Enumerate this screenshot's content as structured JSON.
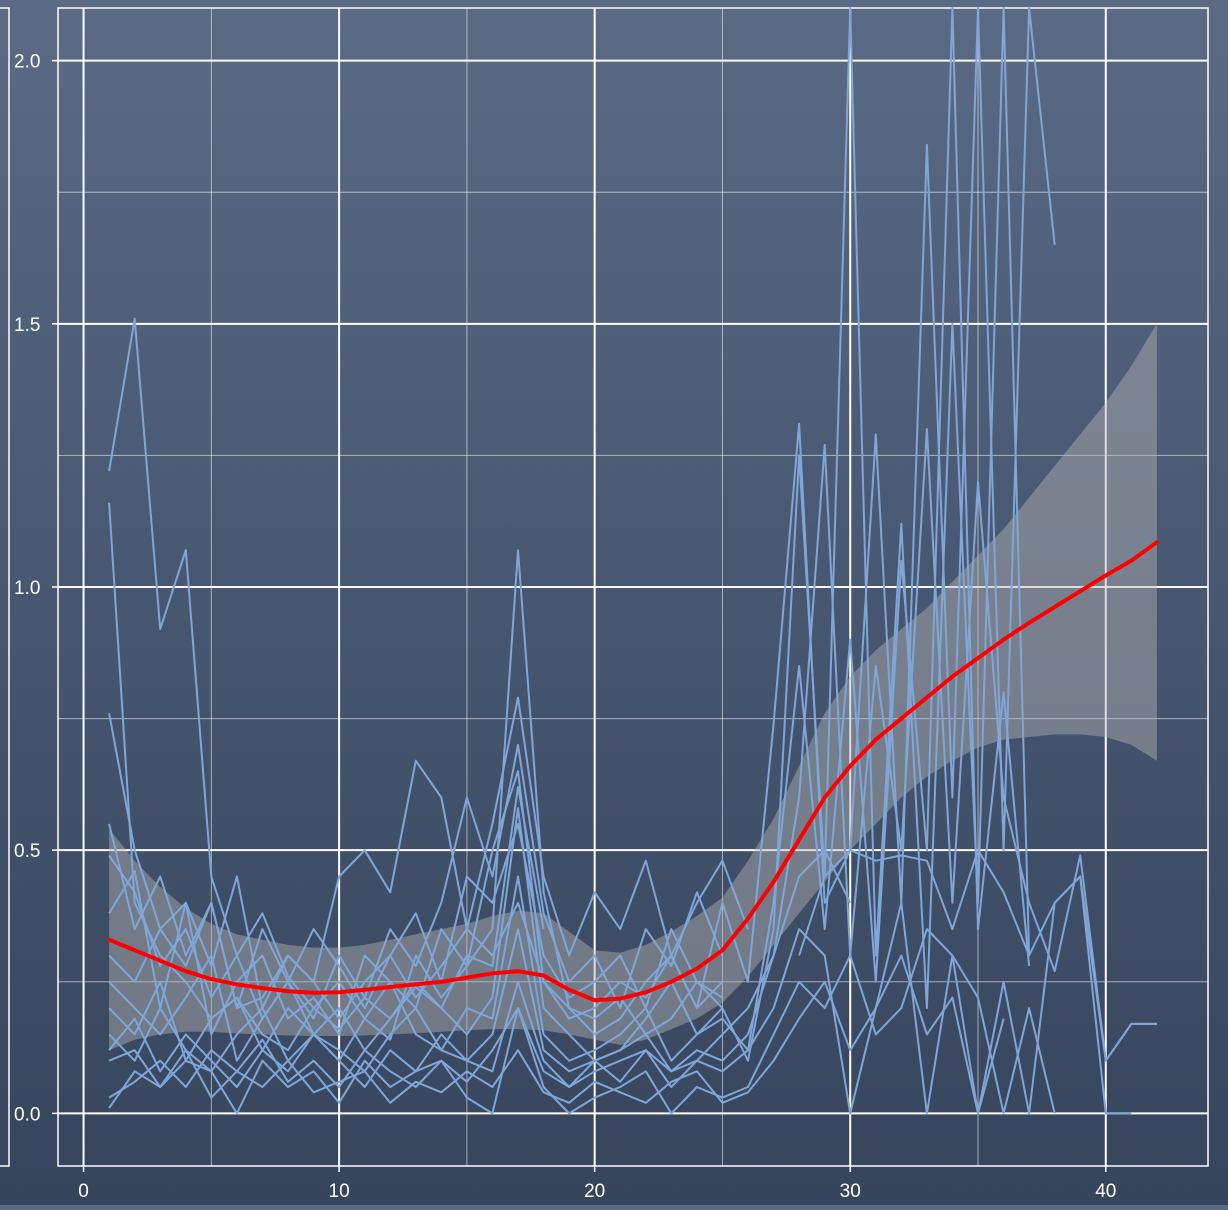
{
  "chart_data": {
    "type": "line",
    "title": "",
    "xlabel": "",
    "ylabel": "",
    "xlim": [
      -1,
      44
    ],
    "ylim": [
      -0.1,
      2.1
    ],
    "x_ticks": [
      0,
      10,
      20,
      30,
      40
    ],
    "y_ticks": [
      0.0,
      0.5,
      1.0,
      1.5,
      2.0
    ],
    "x_tick_labels": [
      "0",
      "10",
      "20",
      "30",
      "40"
    ],
    "y_tick_labels": [
      "0.0",
      "0.5",
      "1.0",
      "1.5",
      "2.0"
    ],
    "x_minor_ticks": [
      5,
      15,
      25,
      35
    ],
    "y_minor_ticks": [
      0.25,
      0.75,
      1.25,
      1.75
    ],
    "grid": true,
    "legend": "none",
    "colors": {
      "individual_lines": "#7fa6d6",
      "smooth_line": "#ff0000",
      "confidence_band": "#b4b4b4",
      "grid": "#ffffff"
    },
    "series": [
      {
        "x": [
          1,
          2,
          3,
          4,
          5,
          6,
          7,
          8,
          9,
          10,
          11,
          12,
          13,
          14,
          15,
          16,
          17,
          18
        ],
        "y": [
          1.22,
          1.51,
          0.92,
          1.07,
          0.45,
          0.3,
          0.38,
          0.26,
          0.2,
          0.16,
          0.22,
          0.18,
          0.24,
          0.2,
          0.3,
          0.28,
          0.62,
          0.35
        ]
      },
      {
        "x": [
          1,
          2,
          3,
          4,
          5,
          6,
          7,
          8,
          9,
          10,
          11,
          12,
          13,
          14,
          15,
          16,
          17,
          18,
          19,
          20,
          21,
          22,
          23,
          24,
          25
        ],
        "y": [
          1.16,
          0.4,
          0.3,
          0.25,
          0.18,
          0.22,
          0.15,
          0.12,
          0.2,
          0.25,
          0.18,
          0.14,
          0.3,
          0.22,
          0.28,
          0.35,
          1.07,
          0.42,
          0.2,
          0.18,
          0.22,
          0.15,
          0.18,
          0.25,
          0.2
        ]
      },
      {
        "x": [
          1,
          2,
          3,
          4,
          5,
          6,
          7,
          8,
          9,
          10,
          11,
          12,
          13,
          14,
          15,
          16,
          17,
          18,
          19,
          20,
          21,
          22,
          23,
          24,
          25,
          26
        ],
        "y": [
          0.76,
          0.5,
          0.35,
          0.4,
          0.28,
          0.45,
          0.2,
          0.3,
          0.25,
          0.45,
          0.5,
          0.42,
          0.67,
          0.6,
          0.35,
          0.55,
          0.79,
          0.45,
          0.3,
          0.42,
          0.35,
          0.48,
          0.3,
          0.4,
          0.48,
          0.35
        ]
      },
      {
        "x": [
          1,
          2,
          3,
          4,
          5,
          6,
          7,
          8,
          9,
          10,
          11,
          12,
          13,
          14,
          15,
          16,
          17,
          18,
          19,
          20,
          21,
          22,
          23,
          24,
          25
        ],
        "y": [
          0.55,
          0.35,
          0.45,
          0.3,
          0.4,
          0.2,
          0.35,
          0.25,
          0.18,
          0.3,
          0.22,
          0.35,
          0.28,
          0.4,
          0.6,
          0.45,
          0.7,
          0.38,
          0.25,
          0.3,
          0.2,
          0.35,
          0.28,
          0.42,
          0.3
        ]
      },
      {
        "x": [
          1,
          2,
          3,
          4,
          5,
          6,
          7,
          8,
          9,
          10,
          11,
          12,
          13,
          14,
          15,
          16,
          17,
          18,
          19,
          20,
          21,
          22,
          23,
          24,
          25
        ],
        "y": [
          0.49,
          0.42,
          0.28,
          0.35,
          0.22,
          0.3,
          0.18,
          0.25,
          0.35,
          0.28,
          0.2,
          0.3,
          0.38,
          0.25,
          0.45,
          0.4,
          0.55,
          0.3,
          0.22,
          0.25,
          0.3,
          0.2,
          0.35,
          0.25,
          0.22
        ]
      },
      {
        "x": [
          1,
          2,
          3,
          4,
          5,
          6,
          7,
          8,
          9,
          10,
          11,
          12,
          13,
          14,
          15,
          16,
          17,
          18,
          19,
          20,
          21,
          22,
          23,
          24,
          25
        ],
        "y": [
          0.38,
          0.46,
          0.2,
          0.4,
          0.15,
          0.25,
          0.3,
          0.18,
          0.22,
          0.15,
          0.3,
          0.25,
          0.2,
          0.35,
          0.28,
          0.5,
          0.65,
          0.25,
          0.18,
          0.2,
          0.25,
          0.22,
          0.3,
          0.2,
          0.25
        ]
      },
      {
        "x": [
          1,
          2,
          3,
          4,
          5,
          6,
          7,
          8,
          9,
          10,
          11,
          12,
          13,
          14,
          15,
          16,
          17,
          18,
          19,
          20,
          21,
          22,
          23,
          24,
          25,
          26,
          27,
          28,
          29,
          30,
          31,
          32,
          33,
          34,
          35,
          36,
          37,
          38
        ],
        "y": [
          0.3,
          0.25,
          0.35,
          0.28,
          0.4,
          0.2,
          0.22,
          0.3,
          0.25,
          0.18,
          0.25,
          0.3,
          0.22,
          0.28,
          0.35,
          0.3,
          0.4,
          0.25,
          0.2,
          0.15,
          0.18,
          0.25,
          0.3,
          0.2,
          0.4,
          0.25,
          0.74,
          1.31,
          0.4,
          0.5,
          1.29,
          0.4,
          1.84,
          0.6,
          2.12,
          0.5,
          2.12,
          1.65
        ]
      },
      {
        "x": [
          1,
          2,
          3,
          4,
          5,
          6,
          7,
          8,
          9,
          10,
          11,
          12,
          13,
          14,
          15,
          16,
          17,
          18,
          19,
          20,
          21,
          22,
          23,
          24,
          25,
          26,
          27,
          28,
          29,
          30,
          31,
          32,
          33,
          34,
          35,
          36,
          37
        ],
        "y": [
          0.25,
          0.2,
          0.15,
          0.22,
          0.3,
          0.1,
          0.18,
          0.25,
          0.15,
          0.2,
          0.12,
          0.18,
          0.25,
          0.2,
          0.15,
          0.22,
          0.58,
          0.2,
          0.15,
          0.1,
          0.12,
          0.18,
          0.25,
          0.15,
          0.2,
          0.1,
          0.35,
          1.25,
          0.45,
          2.12,
          0.3,
          1.12,
          0.2,
          1.5,
          0.4,
          2.12,
          0.3
        ]
      },
      {
        "x": [
          1,
          2,
          3,
          4,
          5,
          6,
          7,
          8,
          9,
          10,
          11,
          12,
          13,
          14,
          15,
          16,
          17,
          18,
          19,
          20,
          21,
          22,
          23,
          24,
          25,
          26,
          27,
          28,
          29,
          30,
          31,
          32,
          33,
          34,
          35,
          36,
          37
        ],
        "y": [
          0.2,
          0.15,
          0.25,
          0.1,
          0.18,
          0.22,
          0.12,
          0.2,
          0.15,
          0.1,
          0.18,
          0.25,
          0.15,
          0.12,
          0.2,
          0.18,
          0.45,
          0.15,
          0.1,
          0.12,
          0.15,
          0.2,
          0.1,
          0.15,
          0.18,
          0.12,
          0.4,
          0.85,
          0.35,
          0.9,
          0.25,
          1.05,
          0.5,
          2.12,
          0.35,
          0.8,
          0.28
        ]
      },
      {
        "x": [
          1,
          2,
          3,
          4,
          5,
          6,
          7,
          8,
          9,
          10,
          11,
          12,
          13,
          14,
          15,
          16,
          17,
          18,
          19,
          20,
          21,
          22,
          23,
          24,
          25,
          26,
          27,
          28,
          29,
          30,
          31,
          32,
          33,
          34,
          35,
          36,
          37,
          38,
          39,
          40,
          41,
          42
        ],
        "y": [
          0.15,
          0.1,
          0.2,
          0.12,
          0.08,
          0.15,
          0.2,
          0.1,
          0.15,
          0.12,
          0.08,
          0.15,
          0.2,
          0.12,
          0.1,
          0.15,
          0.35,
          0.12,
          0.08,
          0.1,
          0.12,
          0.15,
          0.08,
          0.12,
          0.1,
          0.15,
          0.3,
          0.6,
          1.27,
          0.3,
          0.85,
          0.5,
          1.3,
          0.4,
          1.2,
          0.6,
          0.4,
          0.27,
          0.49,
          0.1,
          0.17,
          0.17
        ]
      },
      {
        "x": [
          1,
          2,
          3,
          4,
          5,
          6,
          7,
          8,
          9,
          10,
          11,
          12,
          13,
          14,
          15,
          16,
          17,
          18,
          19,
          20,
          21,
          22,
          23,
          24,
          25,
          26,
          27,
          28,
          29,
          30,
          31,
          32,
          33,
          34,
          35,
          36,
          37,
          38,
          39,
          40,
          41
        ],
        "y": [
          0.12,
          0.18,
          0.08,
          0.15,
          0.1,
          0.05,
          0.12,
          0.08,
          0.15,
          0.1,
          0.05,
          0.12,
          0.08,
          0.15,
          0.1,
          0.08,
          0.25,
          0.1,
          0.05,
          0.08,
          0.1,
          0.12,
          0.05,
          0.1,
          0.08,
          0.12,
          0.2,
          0.35,
          0.3,
          0.0,
          0.2,
          0.4,
          0.0,
          0.3,
          0.0,
          0.25,
          0.0,
          0.4,
          0.45,
          0.0,
          0.0
        ]
      },
      {
        "x": [
          1,
          2,
          3,
          4,
          5,
          6,
          7,
          8,
          9,
          10,
          11,
          12,
          13,
          14,
          15,
          16,
          17,
          18,
          19,
          20,
          21,
          22,
          23,
          24,
          25,
          26,
          27,
          28,
          29,
          30,
          31,
          32,
          33,
          34,
          35,
          36,
          37,
          38
        ],
        "y": [
          0.1,
          0.12,
          0.05,
          0.1,
          0.08,
          0.0,
          0.1,
          0.05,
          0.08,
          0.02,
          0.1,
          0.05,
          0.08,
          0.1,
          0.03,
          0.0,
          0.2,
          0.05,
          0.0,
          0.03,
          0.05,
          0.08,
          0.0,
          0.05,
          0.03,
          0.05,
          0.15,
          0.25,
          0.2,
          0.3,
          0.15,
          0.2,
          0.35,
          0.3,
          0.22,
          0.0,
          0.2,
          0.0
        ]
      },
      {
        "x": [
          1,
          2,
          3,
          4,
          5,
          6,
          7,
          8,
          9,
          10,
          11,
          12,
          13,
          14,
          15,
          16,
          17,
          18,
          19,
          20,
          21,
          22,
          23,
          24,
          25,
          26,
          27,
          28,
          29,
          30,
          31,
          32,
          33,
          34,
          35,
          36
        ],
        "y": [
          0.01,
          0.08,
          0.05,
          0.12,
          0.03,
          0.08,
          0.05,
          0.1,
          0.04,
          0.06,
          0.08,
          0.02,
          0.06,
          0.04,
          0.08,
          0.05,
          0.12,
          0.04,
          0.02,
          0.06,
          0.04,
          0.02,
          0.06,
          0.08,
          0.02,
          0.04,
          0.1,
          0.18,
          0.25,
          0.12,
          0.2,
          0.3,
          0.15,
          0.22,
          0.0,
          0.18
        ]
      },
      {
        "x": [
          1,
          2,
          3,
          4,
          5,
          6,
          7,
          8,
          9,
          10,
          11,
          12,
          13,
          14,
          15,
          16,
          17,
          18,
          19,
          20,
          21,
          22,
          23,
          24,
          25,
          26,
          27,
          28,
          29,
          30
        ],
        "y": [
          0.03,
          0.06,
          0.1,
          0.05,
          0.12,
          0.08,
          0.14,
          0.06,
          0.1,
          0.05,
          0.12,
          0.08,
          0.05,
          0.1,
          0.06,
          0.12,
          0.2,
          0.08,
          0.05,
          0.1,
          0.06,
          0.12,
          0.08,
          0.1,
          0.15,
          0.2,
          0.3,
          0.45,
          0.5,
          0.4
        ]
      },
      {
        "x": [
          28,
          29,
          30,
          31,
          32,
          33,
          34,
          35,
          36,
          37,
          38,
          39,
          40,
          41,
          42
        ],
        "y": [
          0.3,
          0.45,
          0.5,
          0.48,
          0.49,
          0.48,
          0.35,
          0.5,
          0.42,
          0.3,
          0.4,
          0.45,
          0.1,
          0.17,
          0.17
        ]
      }
    ],
    "smooth": {
      "x": [
        1,
        2,
        3,
        4,
        5,
        6,
        7,
        8,
        9,
        10,
        11,
        12,
        13,
        14,
        15,
        16,
        17,
        18,
        19,
        20,
        21,
        22,
        23,
        24,
        25,
        26,
        27,
        28,
        29,
        30,
        31,
        32,
        33,
        34,
        35,
        36,
        37,
        38,
        39,
        40,
        41,
        42
      ],
      "y": [
        0.33,
        0.31,
        0.29,
        0.27,
        0.255,
        0.245,
        0.238,
        0.232,
        0.229,
        0.23,
        0.235,
        0.24,
        0.245,
        0.25,
        0.258,
        0.266,
        0.27,
        0.262,
        0.235,
        0.215,
        0.218,
        0.23,
        0.25,
        0.275,
        0.31,
        0.37,
        0.44,
        0.52,
        0.6,
        0.66,
        0.71,
        0.75,
        0.79,
        0.83,
        0.865,
        0.9,
        0.932,
        0.962,
        0.992,
        1.022,
        1.05,
        1.085
      ]
    },
    "band": {
      "x": [
        1,
        2,
        3,
        4,
        5,
        6,
        7,
        8,
        9,
        10,
        11,
        12,
        13,
        14,
        15,
        16,
        17,
        18,
        19,
        20,
        21,
        22,
        23,
        24,
        25,
        26,
        27,
        28,
        29,
        30,
        31,
        32,
        33,
        34,
        35,
        36,
        37,
        38,
        39,
        40,
        41,
        42
      ],
      "lower": [
        0.12,
        0.14,
        0.15,
        0.155,
        0.155,
        0.152,
        0.15,
        0.148,
        0.147,
        0.147,
        0.148,
        0.15,
        0.152,
        0.155,
        0.158,
        0.16,
        0.16,
        0.158,
        0.15,
        0.14,
        0.13,
        0.14,
        0.16,
        0.18,
        0.21,
        0.26,
        0.32,
        0.38,
        0.44,
        0.5,
        0.55,
        0.6,
        0.64,
        0.67,
        0.695,
        0.71,
        0.715,
        0.72,
        0.72,
        0.715,
        0.7,
        0.67
      ],
      "upper": [
        0.54,
        0.48,
        0.43,
        0.39,
        0.36,
        0.34,
        0.33,
        0.32,
        0.315,
        0.315,
        0.32,
        0.33,
        0.34,
        0.35,
        0.36,
        0.375,
        0.385,
        0.38,
        0.345,
        0.31,
        0.305,
        0.32,
        0.345,
        0.375,
        0.41,
        0.48,
        0.56,
        0.66,
        0.76,
        0.83,
        0.88,
        0.92,
        0.96,
        1.01,
        1.06,
        1.11,
        1.17,
        1.23,
        1.29,
        1.35,
        1.42,
        1.5
      ]
    }
  }
}
